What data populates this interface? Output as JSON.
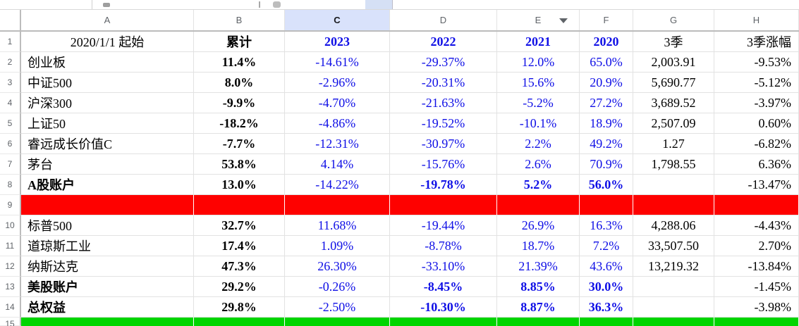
{
  "chrome": {
    "column_letters": [
      "A",
      "B",
      "C",
      "D",
      "E",
      "F",
      "G",
      "H"
    ],
    "selected_column": "C",
    "filter_arrow_column": "E",
    "row_numbers": [
      "1",
      "2",
      "3",
      "4",
      "5",
      "6",
      "7",
      "8",
      "9",
      "10",
      "11",
      "12",
      "13",
      "14",
      "15"
    ]
  },
  "colors": {
    "selected_header_fill": "#d9e2fb",
    "value_blue": "#0f0fe6",
    "separator_red_fill": "#fe0100",
    "separator_green_fill": "#00d500"
  },
  "table": {
    "rows": [
      {
        "n": "1",
        "type": "title",
        "cells": [
          "2020/1/1 起始",
          "累计",
          "2023",
          "2022",
          "2021",
          "2020",
          "3季",
          "3季涨幅"
        ]
      },
      {
        "n": "2",
        "type": "data",
        "cells": [
          "创业板",
          "11.4%",
          "-14.61%",
          "-29.37%",
          "12.0%",
          "65.0%",
          "2,003.91",
          "-9.53%"
        ]
      },
      {
        "n": "3",
        "type": "data",
        "cells": [
          "中证500",
          "8.0%",
          "-2.96%",
          "-20.31%",
          "15.6%",
          "20.9%",
          "5,690.77",
          "-5.12%"
        ]
      },
      {
        "n": "4",
        "type": "data",
        "cells": [
          "沪深300",
          "-9.9%",
          "-4.70%",
          "-21.63%",
          "-5.2%",
          "27.2%",
          "3,689.52",
          "-3.97%"
        ]
      },
      {
        "n": "5",
        "type": "data",
        "cells": [
          "上证50",
          "-18.2%",
          "-4.86%",
          "-19.52%",
          "-10.1%",
          "18.9%",
          "2,507.09",
          "0.60%"
        ]
      },
      {
        "n": "6",
        "type": "data",
        "cells": [
          "睿远成长价值C",
          "-7.7%",
          "-12.31%",
          "-30.97%",
          "2.2%",
          "49.2%",
          "1.27",
          "-6.82%"
        ]
      },
      {
        "n": "7",
        "type": "data",
        "cells": [
          "茅台",
          "53.8%",
          "4.14%",
          "-15.76%",
          "2.6%",
          "70.9%",
          "1,798.55",
          "6.36%"
        ]
      },
      {
        "n": "8",
        "type": "summary",
        "cells": [
          "A股账户",
          "13.0%",
          "-14.22%",
          "-19.78%",
          "5.2%",
          "56.0%",
          "",
          "-13.47%"
        ]
      },
      {
        "n": "9",
        "type": "red",
        "cells": [
          "",
          "",
          "",
          "",
          "",
          "",
          "",
          ""
        ]
      },
      {
        "n": "10",
        "type": "data",
        "cells": [
          "标普500",
          "32.7%",
          "11.68%",
          "-19.44%",
          "26.9%",
          "16.3%",
          "4,288.06",
          "-4.43%"
        ]
      },
      {
        "n": "11",
        "type": "data",
        "cells": [
          "道琼斯工业",
          "17.4%",
          "1.09%",
          "-8.78%",
          "18.7%",
          "7.2%",
          "33,507.50",
          "2.70%"
        ]
      },
      {
        "n": "12",
        "type": "data",
        "cells": [
          "纳斯达克",
          "47.3%",
          "26.30%",
          "-33.10%",
          "21.39%",
          "43.6%",
          "13,219.32",
          "-13.84%"
        ]
      },
      {
        "n": "13",
        "type": "summary",
        "cells": [
          "美股账户",
          "29.2%",
          "-0.26%",
          "-8.45%",
          "8.85%",
          "30.0%",
          "",
          "-1.45%"
        ]
      },
      {
        "n": "14",
        "type": "summary",
        "cells": [
          "总权益",
          "29.8%",
          "-2.50%",
          "-10.30%",
          "8.87%",
          "36.3%",
          "",
          "-3.98%"
        ]
      },
      {
        "n": "15",
        "type": "green",
        "cells": [
          "",
          "",
          "",
          "",
          "",
          "",
          "",
          ""
        ]
      }
    ]
  }
}
